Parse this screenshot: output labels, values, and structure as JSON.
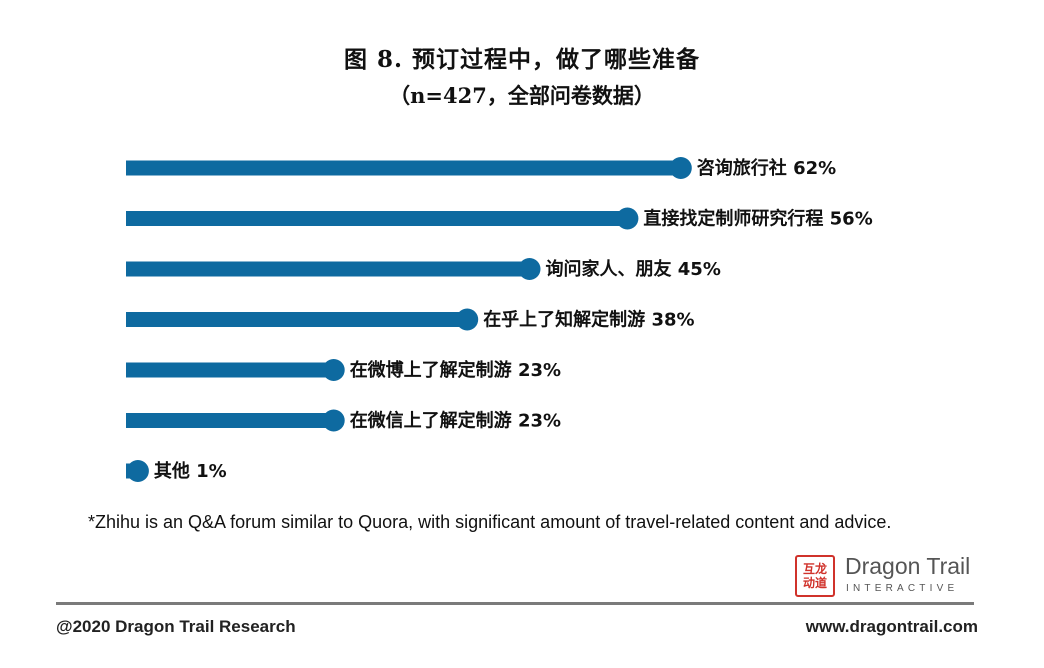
{
  "header": {
    "title": "图 8. 预订过程中，做了哪些准备",
    "subtitle": "（n=427，全部问卷数据）"
  },
  "chart_data": {
    "type": "bar",
    "orientation": "horizontal",
    "title": "图 8. 预订过程中，做了哪些准备",
    "subtitle": "（n=427，全部问卷数据）",
    "categories": [
      "咨询旅行社",
      "直接找定制师研究行程",
      "询问家人、朋友",
      "在乎上了知解定制游",
      "在微博上了解定制游",
      "在微信上了解定制游",
      "其他"
    ],
    "values": [
      62,
      56,
      45,
      38,
      23,
      23,
      1
    ],
    "unit": "%",
    "bar_color": "#0e6aa0",
    "xlim": [
      0,
      70
    ],
    "grid": false,
    "legend": "none"
  },
  "footnote": "*Zhihu is an Q&A forum similar to Quora, with significant amount of travel-related content and advice.",
  "logo": {
    "mark_text": "互龙动道",
    "name": "Dragon Trail",
    "tagline": "INTERACTIVE",
    "mark_color": "#d0322b"
  },
  "footer": {
    "copyright": "@2020 Dragon Trail Research",
    "url": "www.dragontrail.com"
  }
}
